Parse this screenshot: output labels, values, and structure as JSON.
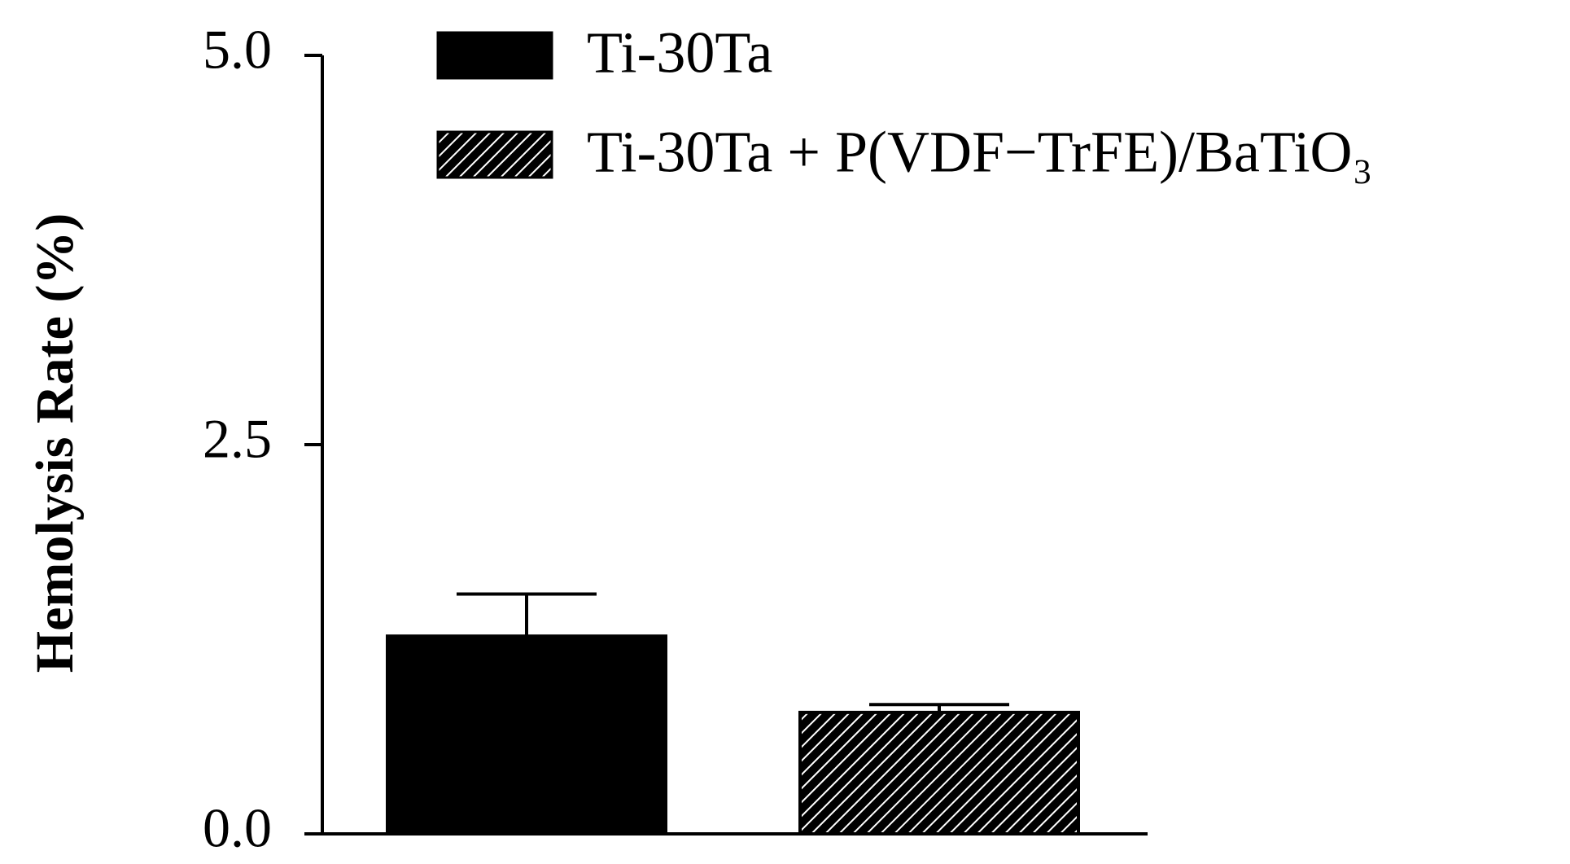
{
  "chart_data": {
    "type": "bar",
    "y_label": "Hemolysis Rate (%)",
    "categories": [
      null
    ],
    "series": [
      {
        "name": "Ti-30Ta",
        "color": "#000000",
        "values": [
          1.27
        ],
        "errors": [
          0.27
        ]
      },
      {
        "name": "Ti-30Ta + P(VDF−TrFE)/BaTiO₃",
        "color": "#000000",
        "pattern": "hatch",
        "values": [
          0.78
        ],
        "errors": [
          0.05
        ]
      }
    ],
    "ylim": [
      0,
      5
    ],
    "yticks": [
      {
        "value": 0,
        "label": "0.0"
      },
      {
        "value": 2.5,
        "label": "2.5"
      },
      {
        "value": 5,
        "label": "5.0"
      }
    ],
    "legend": "top"
  }
}
